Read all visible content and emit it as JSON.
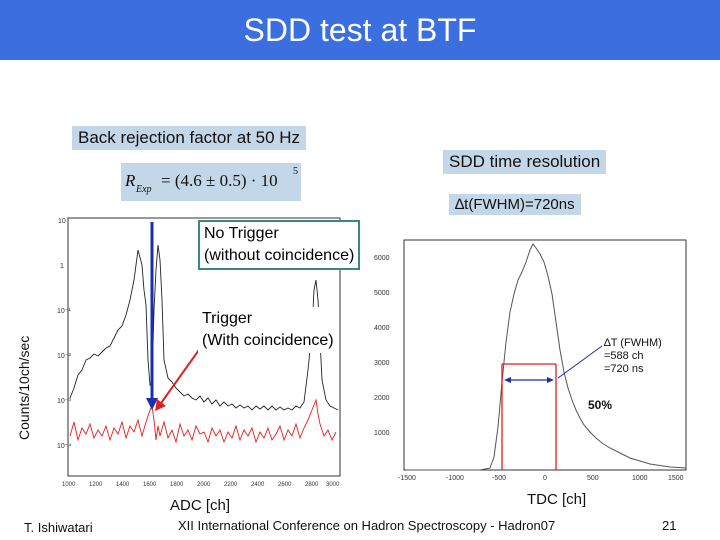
{
  "slide": {
    "title": "SDD test at BTF",
    "back_rejection": "Back rejection factor at 50 Hz",
    "formula": {
      "lhs": "R",
      "sub": "Exp",
      "body": "= (4.6 ± 0.5) · 10",
      "exp": "5"
    },
    "time_res_title": "SDD time resolution",
    "time_res_value": "∆t(FWHM)=720ns",
    "no_trigger": [
      "No Trigger",
      "(without coincidence)"
    ],
    "trigger": [
      "Trigger",
      "(With coincidence)"
    ],
    "ylabel_left": "Counts/10ch/sec",
    "xlabel_left": "ADC [ch]",
    "xlabel_right": "TDC [ch]",
    "footer_author": "T. Ishiwatari",
    "footer_conf": "XII International Conference on Hadron Spectroscopy - Hadron07",
    "page_number": "21"
  },
  "left_plot": {
    "x_ticks": [
      "1000",
      "1200",
      "1400",
      "1600",
      "1800",
      "2000",
      "2200",
      "2400",
      "2600",
      "2800",
      "3000"
    ],
    "y_ticks": [
      "10",
      "1",
      "10⁻¹",
      "10⁻²",
      "10⁻³",
      "10⁻⁴"
    ]
  },
  "right_plot": {
    "x_ticks": [
      "-1500",
      "-1000",
      "-500",
      "0",
      "500",
      "1000",
      "1500"
    ],
    "y_ticks": [
      "6000",
      "5000",
      "4000",
      "3000",
      "2000",
      "1000"
    ],
    "annotation": [
      "∆T (FWHM)",
      "=588 ch",
      "=720 ns"
    ],
    "percent": "50%"
  },
  "colors": {
    "title_bg": "#3b6fe0",
    "box_bg": "#c3d7e8",
    "red": "#e02020",
    "blue": "#1a2fb0"
  }
}
